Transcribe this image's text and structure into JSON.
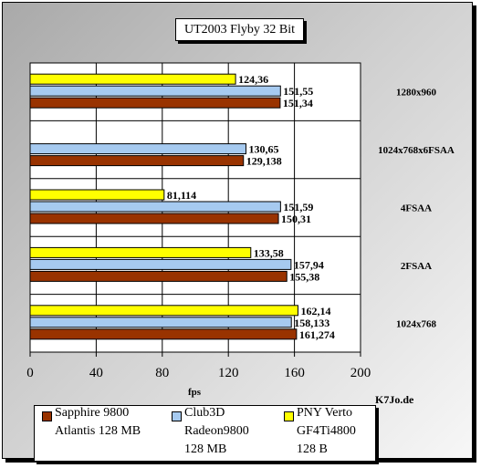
{
  "title": "UT2003 Flyby 32 Bit",
  "watermark": "K7Jo.de",
  "chart_data": {
    "type": "bar",
    "orientation": "horizontal",
    "xlabel": "fps",
    "xlim": [
      0,
      200
    ],
    "xticks": [
      0,
      40,
      80,
      120,
      160,
      200
    ],
    "categories": [
      "1280x960",
      "1024x768x6FSAA",
      "4FSAA",
      "2FSAA",
      "1024x768"
    ],
    "series": [
      {
        "name": "PNY Verto GF4Ti4800 128 B",
        "color": "#ffff00",
        "values": [
          124.36,
          null,
          81.114,
          133.58,
          162.14
        ],
        "labels": [
          "124,36",
          null,
          "81,114",
          "133,58",
          "162,14"
        ]
      },
      {
        "name": "Club3D Radeon9800 128 MB",
        "color": "#a6caf0",
        "values": [
          151.55,
          130.65,
          151.59,
          157.94,
          158.133
        ],
        "labels": [
          "151,55",
          "130,65",
          "151,59",
          "157,94",
          "158,133"
        ]
      },
      {
        "name": "Sapphire 9800 Atlantis 128 MB",
        "color": "#993300",
        "values": [
          151.34,
          129.138,
          150.31,
          155.38,
          161.274
        ],
        "labels": [
          "151,34",
          "129,138",
          "150,31",
          "155,38",
          "161,274"
        ]
      }
    ],
    "grid": true,
    "legend_position": "bottom"
  },
  "legend": [
    {
      "color": "#993300",
      "line1": "Sapphire 9800",
      "line2": "Atlantis 128 MB"
    },
    {
      "color": "#a6caf0",
      "line1": "Club3D",
      "line2": "Radeon9800",
      "line3": "128 MB"
    },
    {
      "color": "#ffff00",
      "line1": "PNY Verto",
      "line2": "GF4Ti4800",
      "line3": "128 B"
    }
  ]
}
